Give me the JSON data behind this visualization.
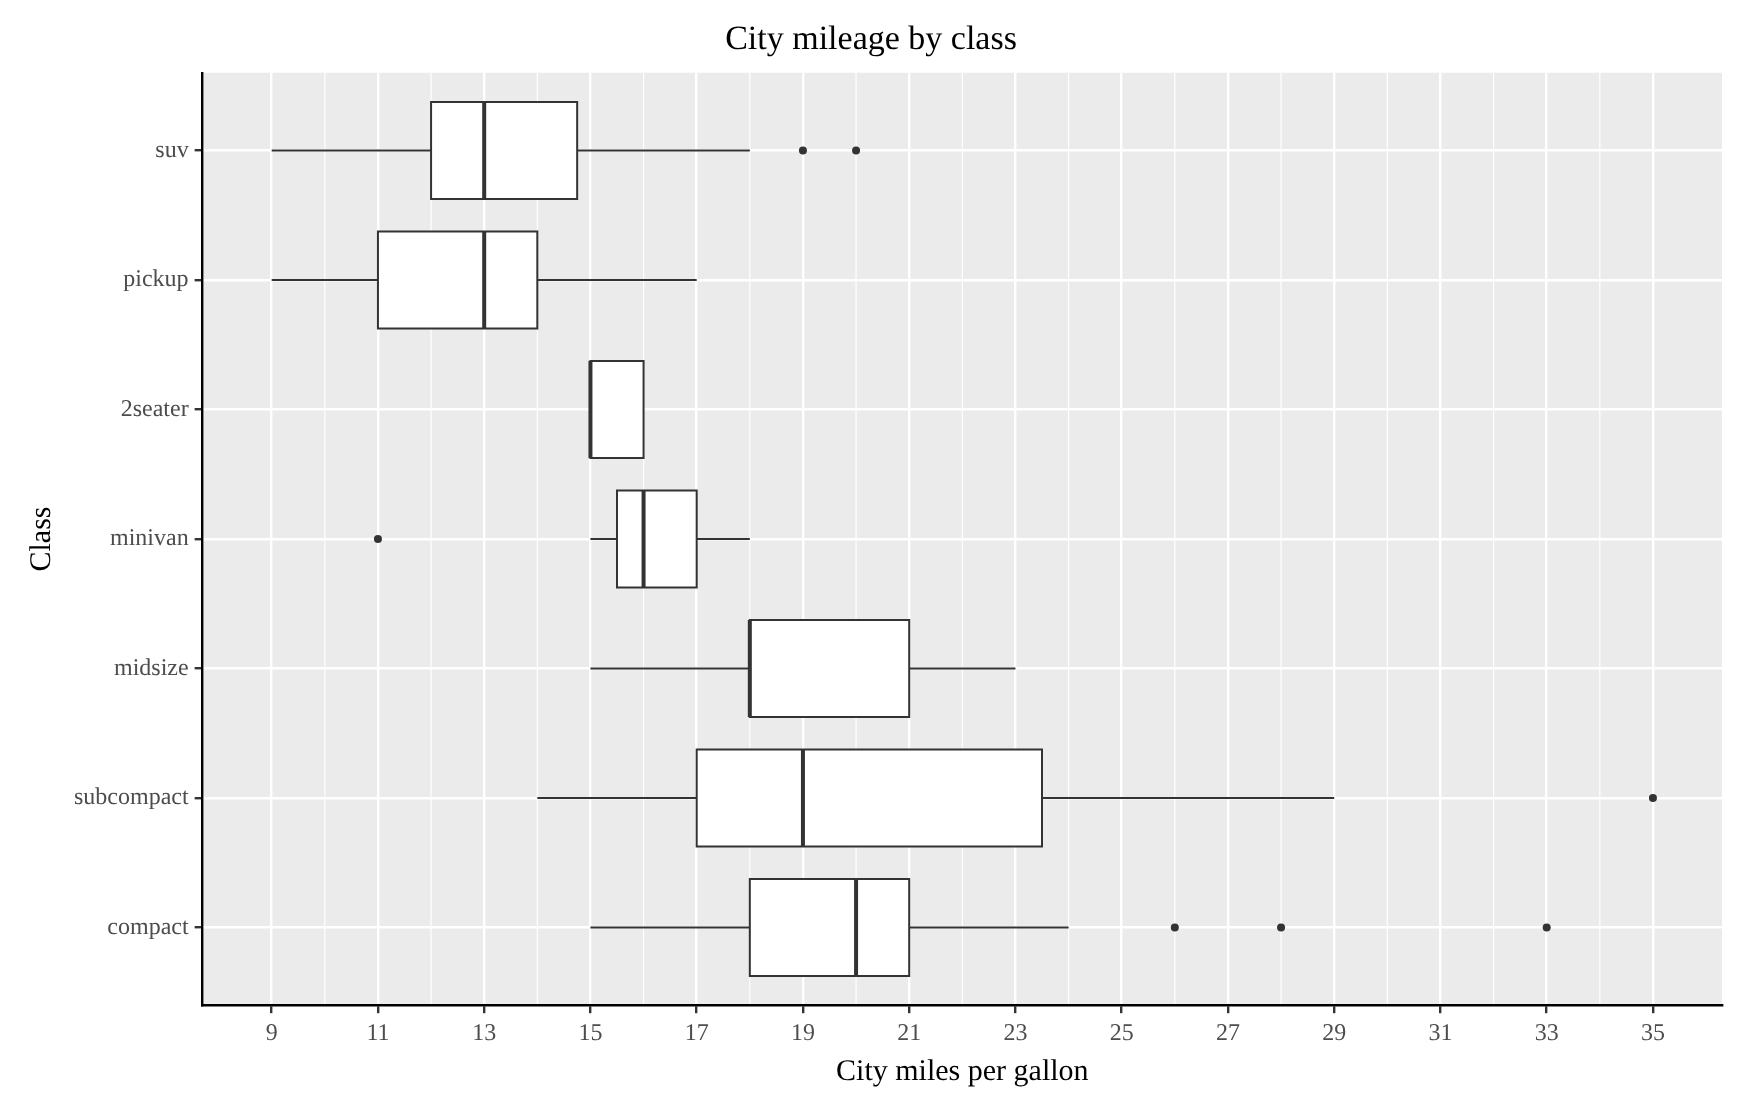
{
  "chart_data": {
    "type": "box",
    "orientation": "horizontal",
    "title": "City mileage by class",
    "xlabel": "City miles per gallon",
    "ylabel": "Class",
    "categories": [
      "suv",
      "pickup",
      "2seater",
      "minivan",
      "midsize",
      "subcompact",
      "compact"
    ],
    "boxes": [
      {
        "low": 9,
        "q1": 12,
        "median": 13,
        "q3": 14.75,
        "high": 18,
        "outliers": [
          19,
          20
        ]
      },
      {
        "low": 9,
        "q1": 11,
        "median": 13,
        "q3": 14,
        "high": 17
      },
      {
        "low": 15,
        "q1": 15,
        "median": 15,
        "q3": 16,
        "high": 16
      },
      {
        "low": 15,
        "q1": 15.5,
        "median": 16,
        "q3": 17,
        "high": 18,
        "outliers": [
          11
        ]
      },
      {
        "low": 15,
        "q1": 18,
        "median": 18,
        "q3": 21,
        "high": 23
      },
      {
        "low": 14,
        "q1": 17,
        "median": 19,
        "q3": 23.5,
        "high": 29,
        "outliers": [
          35
        ]
      },
      {
        "low": 15,
        "q1": 18,
        "median": 20,
        "q3": 21,
        "high": 24,
        "outliers": [
          26,
          28,
          33
        ]
      }
    ],
    "xlim": [
      7.7,
      36.3
    ],
    "xticks": [
      9,
      11,
      13,
      15,
      17,
      19,
      21,
      23,
      25,
      27,
      29,
      31,
      33,
      35
    ],
    "grid": true
  }
}
